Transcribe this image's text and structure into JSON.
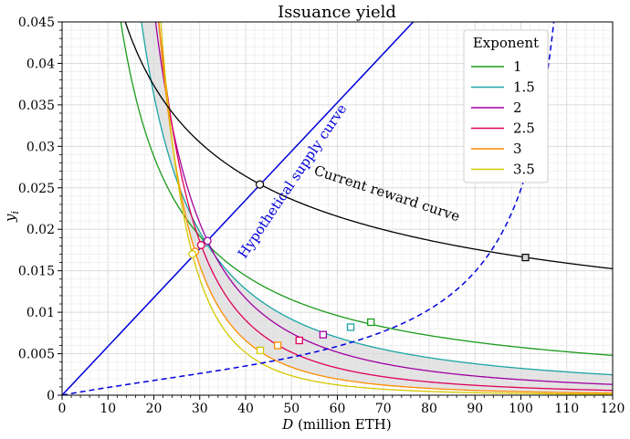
{
  "chart_data": {
    "type": "line",
    "title": "Issuance yield",
    "xlabel_italic": "D",
    "xlabel_rest": " (million ETH)",
    "ylabel": "y",
    "ylabel_subscript": "i",
    "xlim": [
      0,
      120
    ],
    "ylim": [
      0,
      0.045
    ],
    "xticks": [
      0,
      10,
      20,
      30,
      40,
      50,
      60,
      70,
      80,
      90,
      100,
      110,
      120
    ],
    "yticks": [
      0,
      0.005,
      0.01,
      0.015,
      0.02,
      0.025,
      0.03,
      0.035,
      0.04,
      0.045
    ],
    "ytick_labels": [
      "0",
      "0.005",
      "0.01",
      "0.015",
      "0.02",
      "0.025",
      "0.03",
      "0.035",
      "0.04",
      "0.045"
    ],
    "grid": true,
    "legend": {
      "title": "Exponent",
      "placement": "top-right",
      "entries": [
        {
          "label": "1",
          "color": "#1a9a1a"
        },
        {
          "label": "1.5",
          "color": "#1aa5a5"
        },
        {
          "label": "2",
          "color": "#a000a0"
        },
        {
          "label": "2.5",
          "color": "#e0005a"
        },
        {
          "label": "3",
          "color": "#ff8c00"
        },
        {
          "label": "3.5",
          "color": "#d4c800"
        }
      ]
    },
    "series": [
      {
        "name": "1",
        "color": "#1a9a1a",
        "k": 1,
        "intersect_supply": [
          31.3,
          0.0184
        ],
        "intersect_dashed": [
          67.3,
          0.0088
        ]
      },
      {
        "name": "1.5",
        "color": "#1aa5a5",
        "k": 1.5,
        "intersect_supply": [
          31.4,
          0.0184
        ],
        "intersect_dashed": [
          62.9,
          0.0082
        ]
      },
      {
        "name": "2",
        "color": "#a000a0",
        "k": 2,
        "intersect_supply": [
          31.7,
          0.0186
        ],
        "intersect_dashed": [
          56.9,
          0.0073
        ]
      },
      {
        "name": "2.5",
        "color": "#e0005a",
        "k": 2.5,
        "intersect_supply": [
          30.3,
          0.0181
        ],
        "intersect_dashed": [
          51.7,
          0.0066
        ]
      },
      {
        "name": "3",
        "color": "#ff8c00",
        "k": 3,
        "intersect_supply": [
          29.0,
          0.0173
        ],
        "intersect_dashed": [
          47.0,
          0.006
        ]
      },
      {
        "name": "3.5",
        "color": "#d4c800",
        "k": 3.5,
        "intersect_supply": [
          28.4,
          0.017
        ],
        "intersect_dashed": [
          43.2,
          0.0054
        ]
      }
    ],
    "current_reward_curve": {
      "label": "Current reward curve",
      "color": "#000000"
    },
    "supply_curve": {
      "label": "Hypothetical supply curve",
      "color": "#0000dd",
      "slope": 0.000588
    },
    "dashed_curve": {
      "color": "#0000dd"
    },
    "shaded_band": {
      "color": "#d9d9d9"
    },
    "markers": {
      "current_supply_intersection": [
        43.1,
        0.0254
      ],
      "current_dashed_intersection": [
        101.0,
        0.0166
      ]
    }
  }
}
